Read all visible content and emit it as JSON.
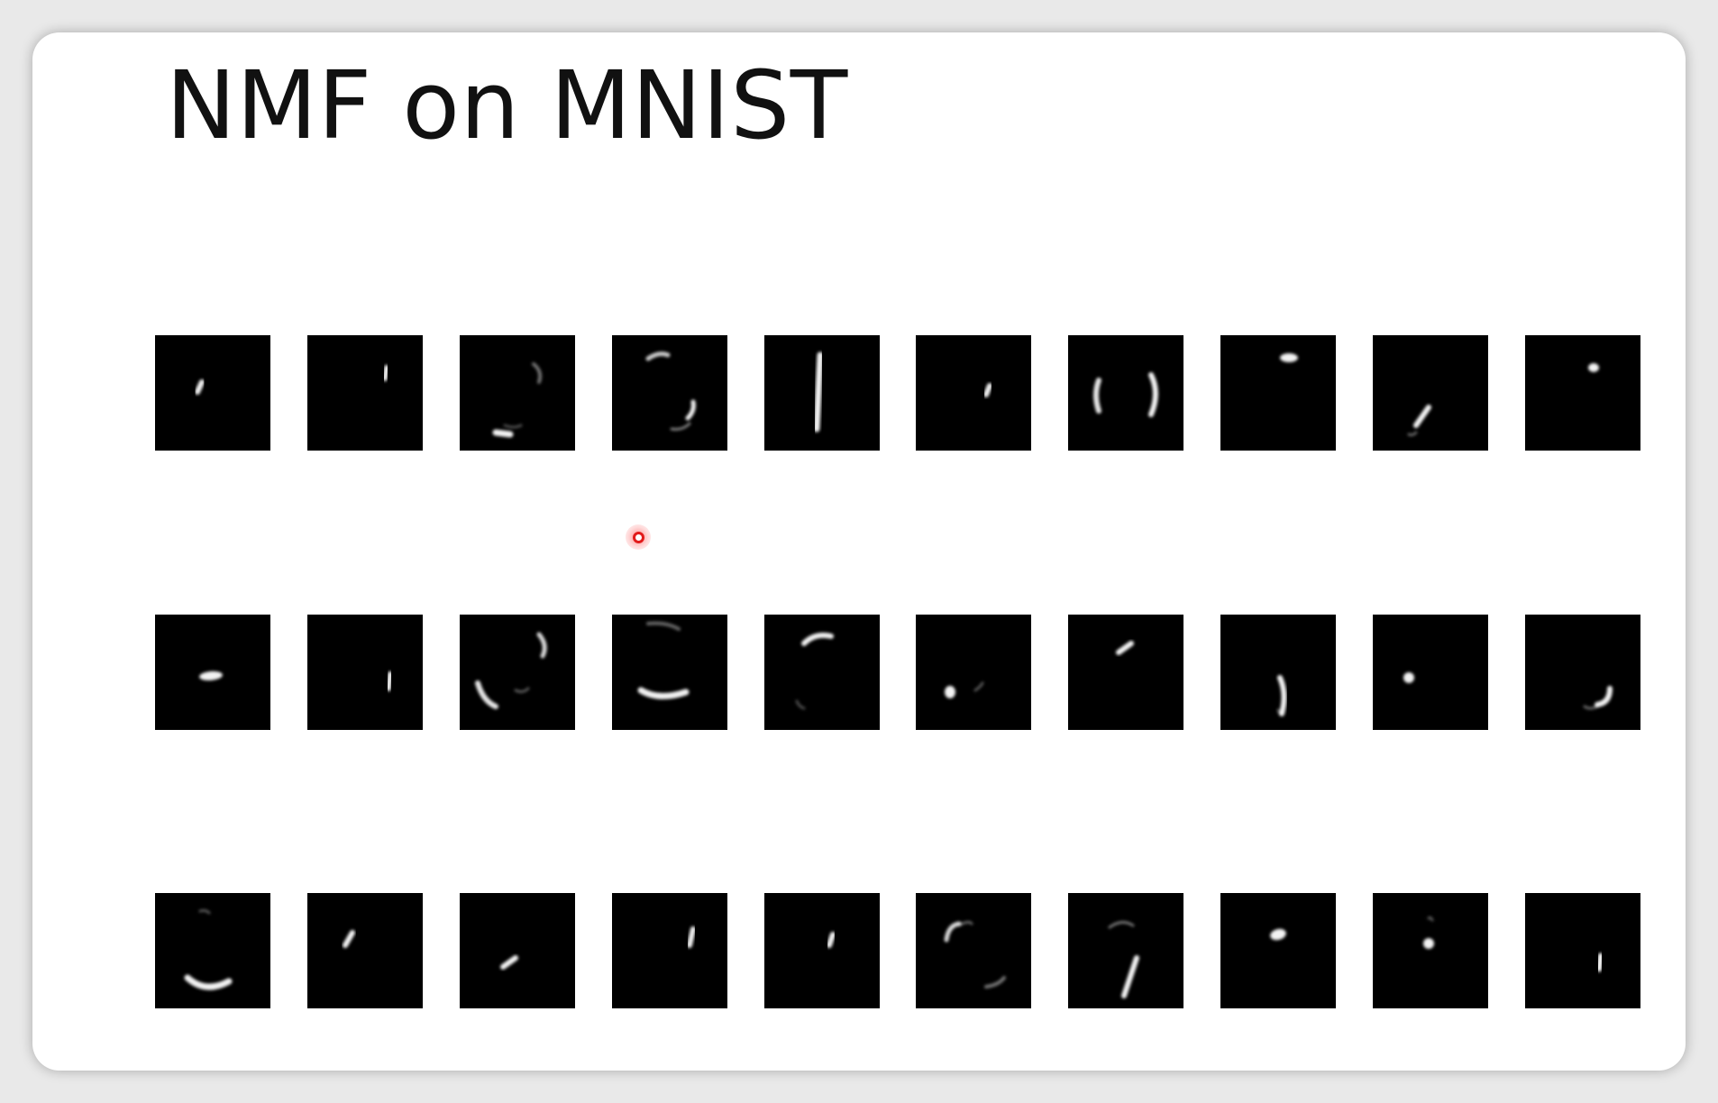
{
  "slide": {
    "title": "NMF on MNIST"
  },
  "components": {
    "rows": 3,
    "columns": 10,
    "tile_background": "#000000",
    "stroke_color": "#ffffff"
  },
  "pointer": {
    "type": "laser-pointer",
    "color": "#e21b1b"
  }
}
